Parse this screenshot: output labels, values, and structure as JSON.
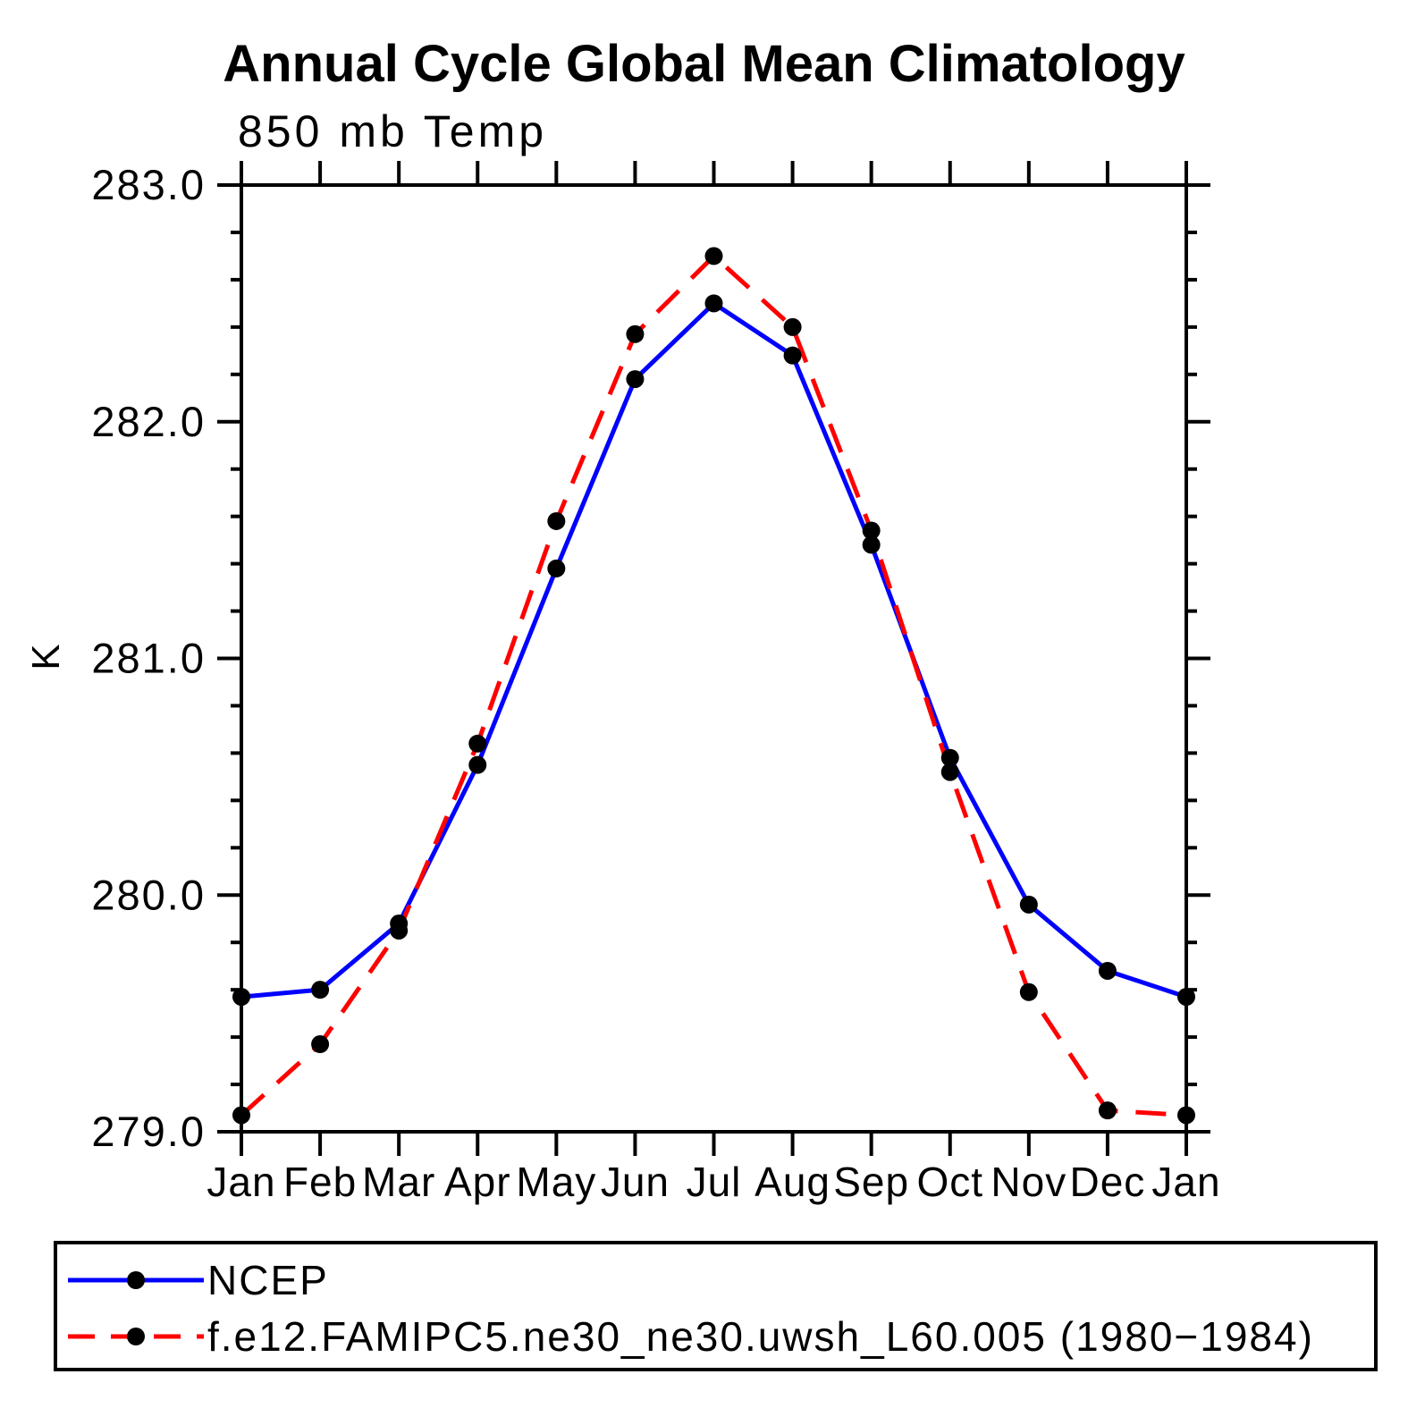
{
  "chart_data": {
    "type": "line",
    "title": "Annual Cycle Global Mean Climatology",
    "subtitle": "850 mb Temp",
    "ylabel": "K",
    "categories": [
      "Jan",
      "Feb",
      "Mar",
      "Apr",
      "May",
      "Jun",
      "Jul",
      "Aug",
      "Sep",
      "Oct",
      "Nov",
      "Dec",
      "Jan"
    ],
    "ylim": [
      279.0,
      283.0
    ],
    "ytick_step": 1.0,
    "yminor_step": 0.2,
    "ytick_labels": [
      "279.0",
      "280.0",
      "281.0",
      "282.0",
      "283.0"
    ],
    "grid": false,
    "legend_position": "bottom-box",
    "axis_color": "#000000",
    "background_color": "#ffffff",
    "series": [
      {
        "name": "NCEP",
        "color": "#0000ff",
        "line_style": "solid",
        "marker": "filled-circle",
        "marker_color": "#000000",
        "values": [
          279.57,
          279.6,
          279.88,
          280.55,
          281.38,
          282.18,
          282.5,
          282.28,
          281.48,
          280.58,
          279.96,
          279.68,
          279.57
        ]
      },
      {
        "name": "f.e12.FAMIPC5.ne30_ne30.uwsh_L60.005 (1980−1984)",
        "color": "#ff0000",
        "line_style": "dashed",
        "marker": "filled-circle",
        "marker_color": "#000000",
        "values": [
          279.07,
          279.37,
          279.85,
          280.64,
          281.58,
          282.37,
          282.7,
          282.4,
          281.54,
          280.52,
          279.59,
          279.09,
          279.07
        ]
      }
    ]
  }
}
